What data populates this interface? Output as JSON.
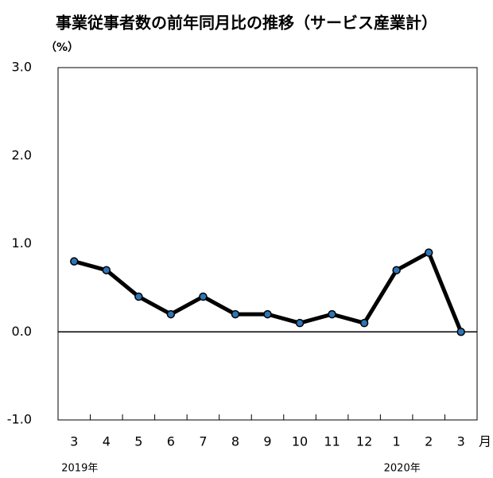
{
  "chart_data": {
    "type": "line",
    "title": "事業従事者数の前年同月比の推移（サービス産業計）",
    "ylabel": "（%）",
    "xlabel": "月",
    "categories": [
      "3",
      "4",
      "5",
      "6",
      "7",
      "8",
      "9",
      "10",
      "11",
      "12",
      "1",
      "2",
      "3"
    ],
    "series": [
      {
        "name": "サービス産業計",
        "color": "#000000",
        "marker_color": "#2e75b6",
        "values": [
          0.8,
          0.7,
          0.4,
          0.2,
          0.4,
          0.2,
          0.2,
          0.1,
          0.2,
          0.1,
          0.7,
          0.9,
          0.0
        ]
      }
    ],
    "ylim": [
      -1.0,
      3.0
    ],
    "yticks": [
      {
        "value": 3.0,
        "label": "3.0"
      },
      {
        "value": 2.0,
        "label": "2.0"
      },
      {
        "value": 1.0,
        "label": "1.0"
      },
      {
        "value": 0.0,
        "label": "0.0"
      },
      {
        "value": -1.0,
        "label": "-1.0"
      }
    ],
    "zero_line": true,
    "annotations": [
      {
        "text": "2019年",
        "category": 0
      },
      {
        "text": "2020年",
        "category": 10
      }
    ]
  }
}
